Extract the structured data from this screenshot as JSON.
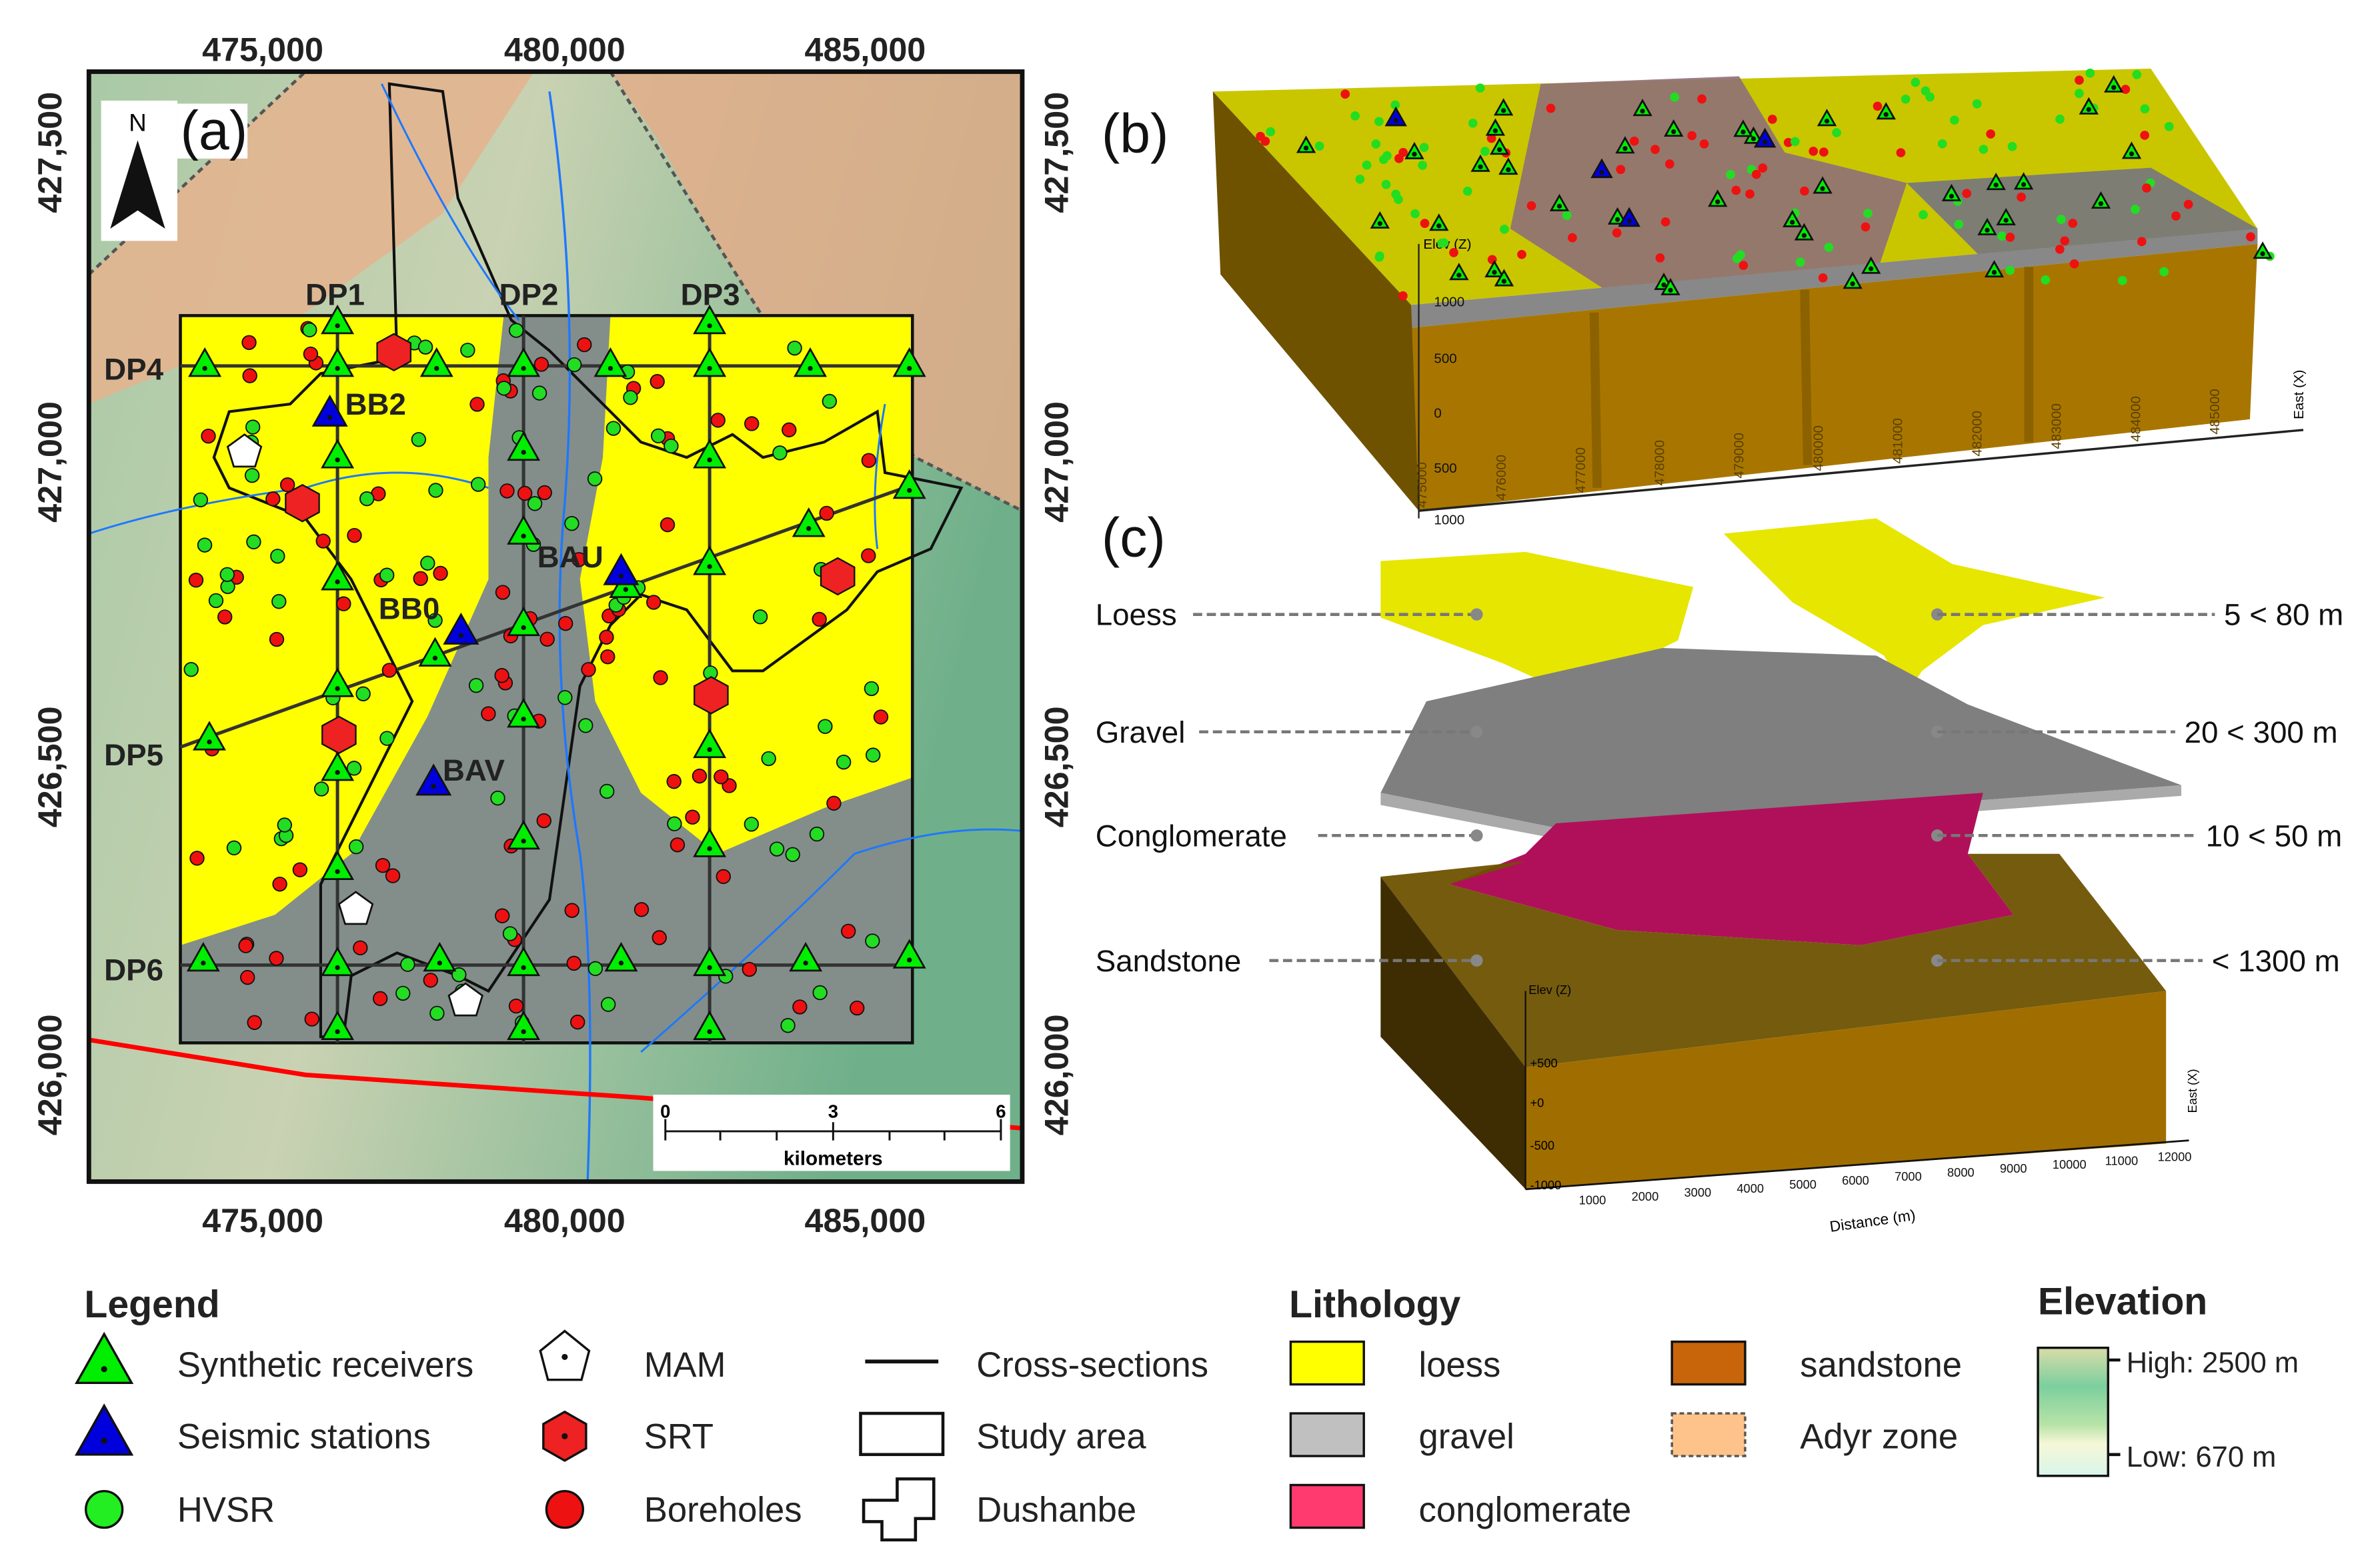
{
  "panel_a": {
    "label": "(a)",
    "north": "N",
    "x_ticks": [
      "475,000",
      "480,000",
      "485,000"
    ],
    "y_ticks": [
      "427,500",
      "427,000",
      "426,500",
      "426,000"
    ],
    "profiles": {
      "dp1": "DP1",
      "dp2": "DP2",
      "dp3": "DP3",
      "dp4": "DP4",
      "dp5": "DP5",
      "dp6": "DP6"
    },
    "stations": {
      "bb2": "BB2",
      "bb0": "BB0",
      "bau": "BAU",
      "bav": "BAV"
    },
    "scalebar": {
      "ticks": [
        "0",
        "3",
        "6"
      ],
      "unit": "kilometers"
    }
  },
  "panel_b": {
    "label": "(b)",
    "z_axis": "Elev (Z)",
    "z_ticks": [
      "1000",
      "500",
      "0",
      "500",
      "1000"
    ],
    "x_axis": "East (X)",
    "x_ticks": [
      "475000",
      "476000",
      "477000",
      "478000",
      "479000",
      "480000",
      "481000",
      "482000",
      "483000",
      "484000",
      "485000"
    ]
  },
  "panel_c": {
    "label": "(c)",
    "layers": [
      {
        "name": "Loess",
        "thickness": "5 < 80 m"
      },
      {
        "name": "Gravel",
        "thickness": "20 < 300 m"
      },
      {
        "name": "Conglomerate",
        "thickness": "10 < 50 m"
      },
      {
        "name": "Sandstone",
        "thickness": "< 1300 m"
      }
    ],
    "z_axis": "Elev (Z)",
    "z_ticks": [
      "+500",
      "+0",
      "-500",
      "-1000"
    ],
    "x_axis": "Distance (m)",
    "x_ticks": [
      "1000",
      "2000",
      "3000",
      "4000",
      "5000",
      "6000",
      "7000",
      "8000",
      "9000",
      "10000",
      "11000",
      "12000"
    ],
    "east_label": "East (X)"
  },
  "legend": {
    "title": "Legend",
    "items": [
      "Synthetic receivers",
      "Seismic stations",
      "HVSR",
      "MAM",
      "SRT",
      "Boreholes",
      "Cross-sections",
      "Study area",
      "Dushanbe"
    ]
  },
  "lithology": {
    "title": "Lithology",
    "items": [
      {
        "name": "loess",
        "color": "#ffff00"
      },
      {
        "name": "gravel",
        "color": "#c0c0c0"
      },
      {
        "name": "conglomerate",
        "color": "#ff3a6e"
      },
      {
        "name": "sandstone",
        "color": "#c8650a"
      },
      {
        "name": "Adyr zone",
        "color": "#fdc38a"
      }
    ]
  },
  "elevation": {
    "title": "Elevation",
    "high": "High: 2500 m",
    "low": "Low: 670 m"
  },
  "colors": {
    "receiver": "#00ee00",
    "seismic": "#0000dd",
    "hvsr": "#22dd22",
    "srt": "#ee2222",
    "borehole": "#ee1111",
    "river": "#1e78ff",
    "boundary": "#ff0000"
  }
}
